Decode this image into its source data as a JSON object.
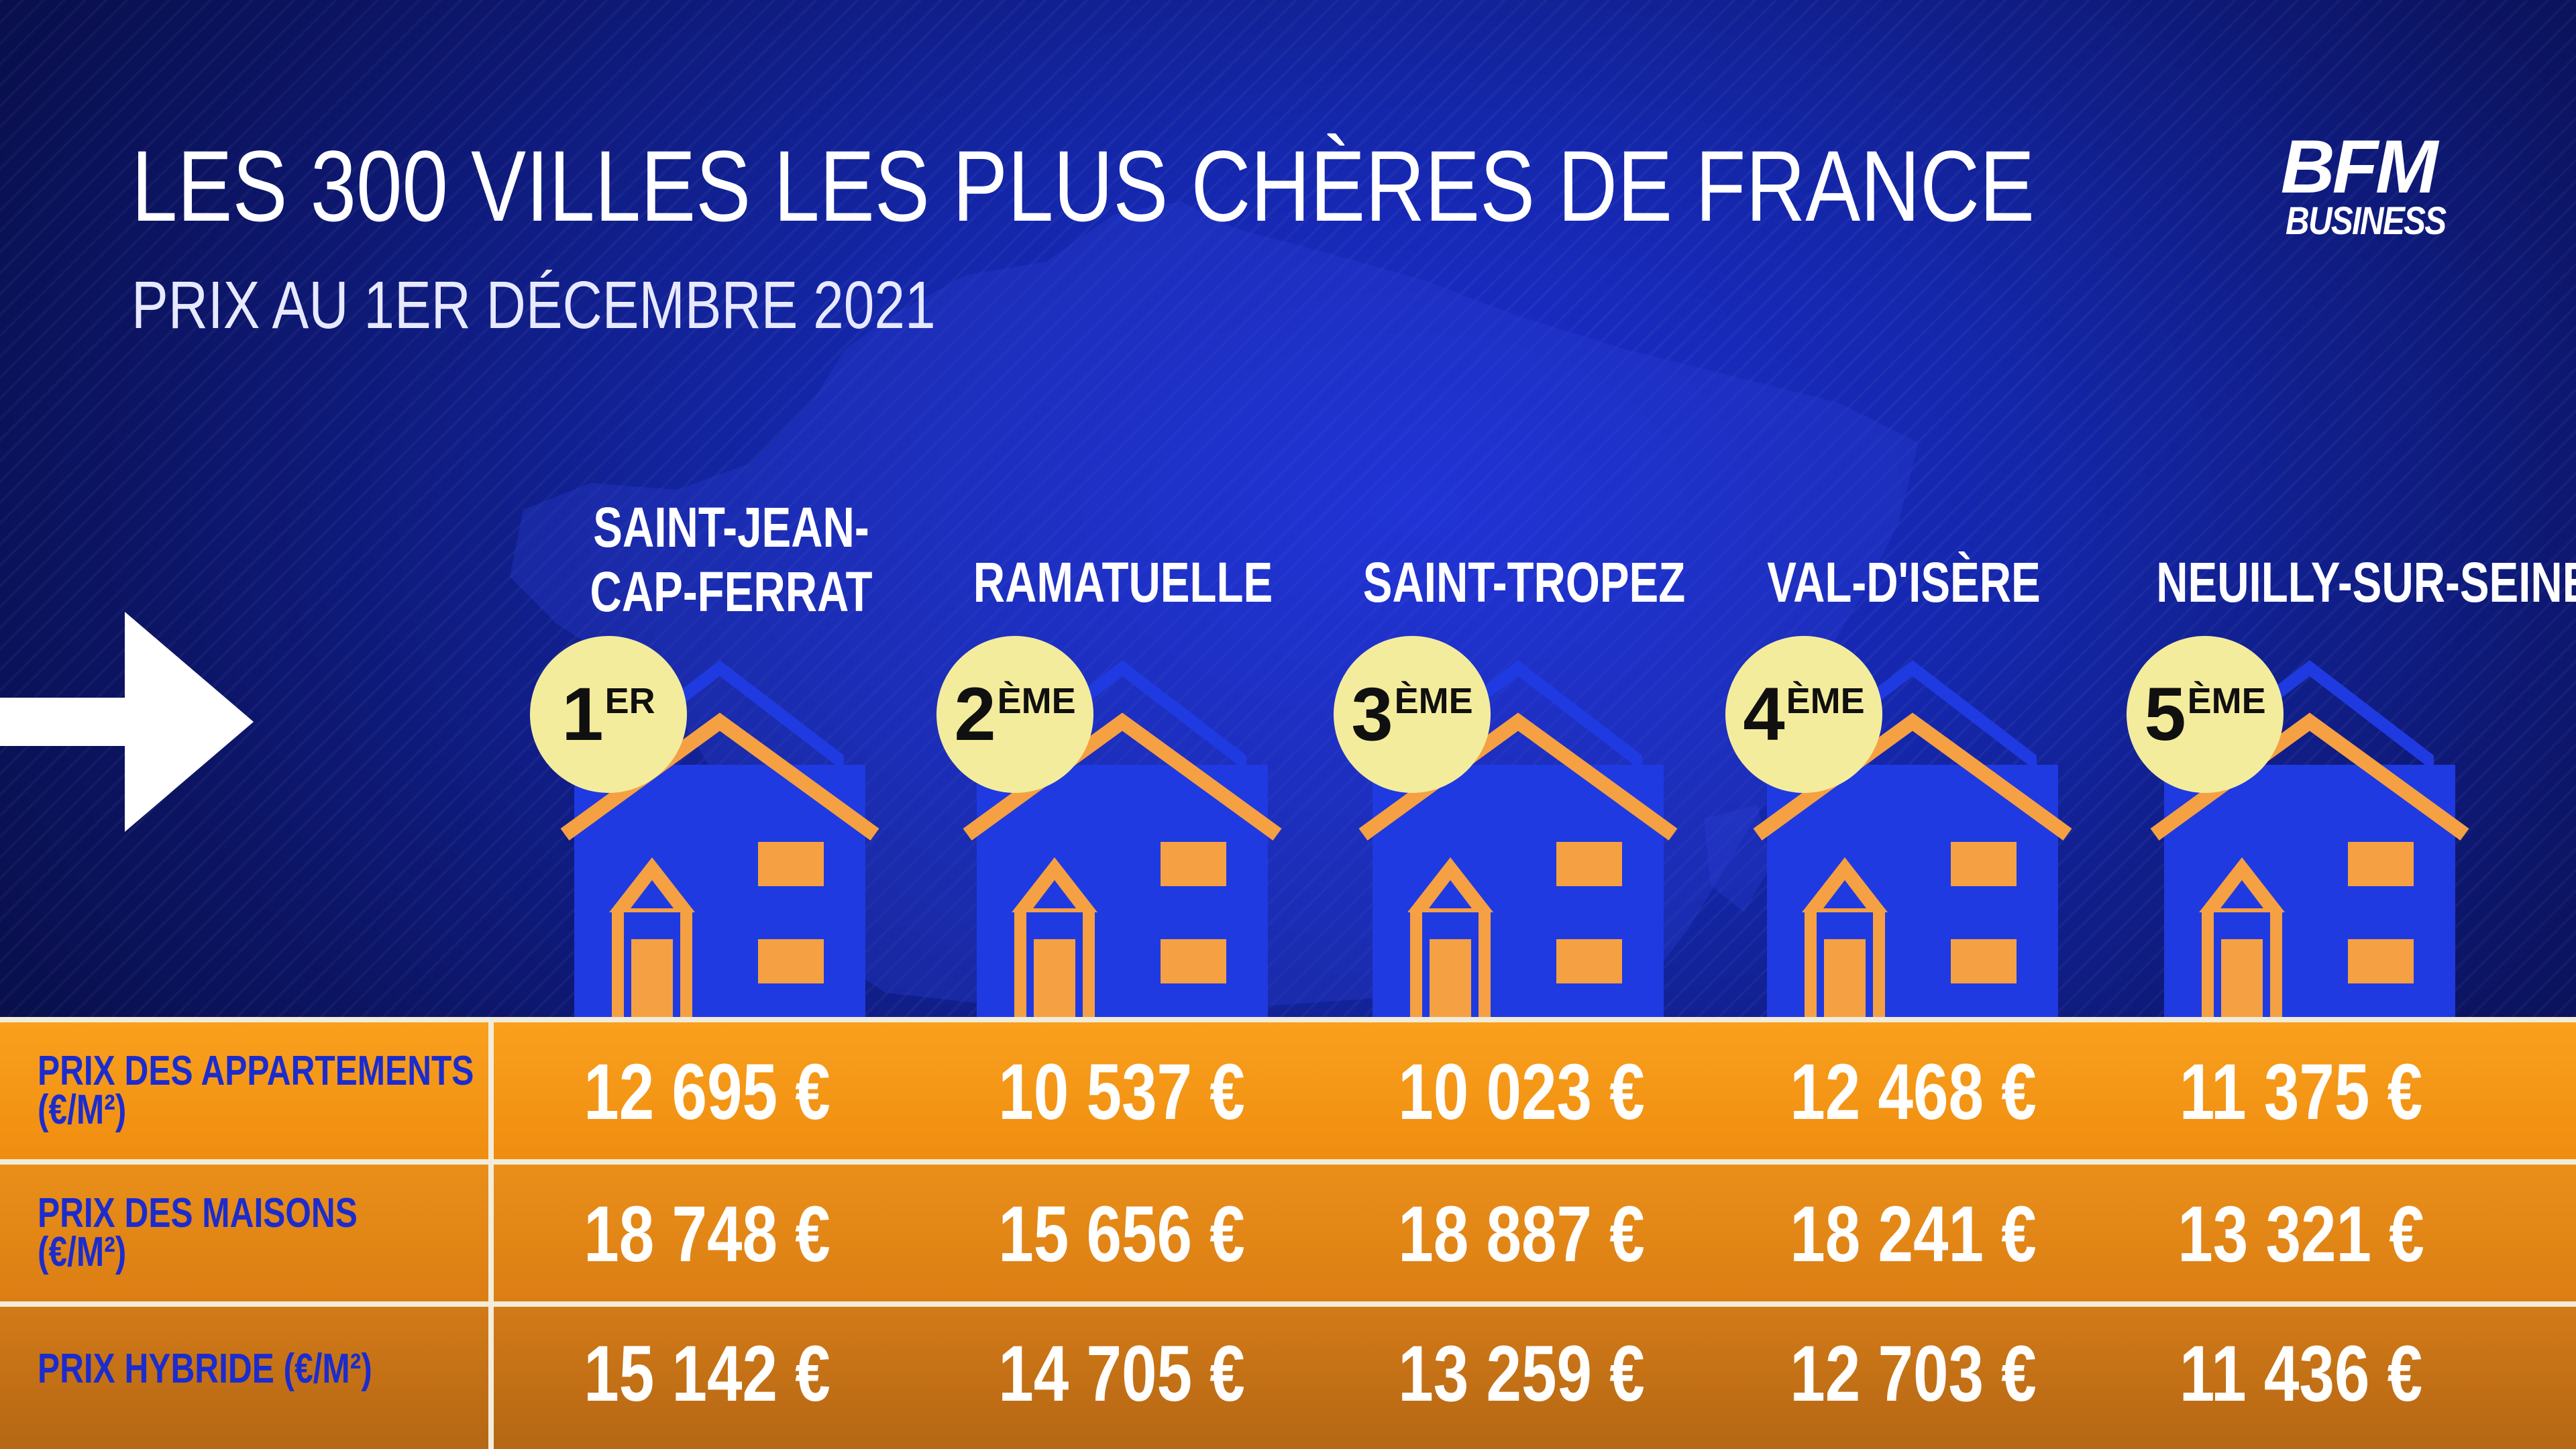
{
  "title": "LES 300 VILLES LES PLUS CHÈRES DE FRANCE",
  "subtitle": "PRIX AU 1ER DÉCEMBRE 2021",
  "logo": {
    "main": "BFM",
    "sub": "BUSINESS"
  },
  "colors": {
    "background": "#1426a8",
    "orange": "#f39a1a",
    "house_blue": "#1f3ae0",
    "badge": "#f4ec9d",
    "label_blue": "#1c2ccc"
  },
  "icons": {
    "arrow": "right-arrow-icon",
    "house": "house-icon"
  },
  "cities": [
    {
      "name_lines": [
        "SAINT-JEAN-",
        "CAP-FERRAT"
      ],
      "rank_num": "1",
      "rank_suffix": "ER"
    },
    {
      "name_lines": [
        "RAMATUELLE"
      ],
      "rank_num": "2",
      "rank_suffix": "ÈME"
    },
    {
      "name_lines": [
        "SAINT-TROPEZ"
      ],
      "rank_num": "3",
      "rank_suffix": "ÈME"
    },
    {
      "name_lines": [
        "VAL-D'ISÈRE"
      ],
      "rank_num": "4",
      "rank_suffix": "ÈME"
    },
    {
      "name_lines": [
        "NEUILLY-SUR-SEINE"
      ],
      "rank_num": "5",
      "rank_suffix": "ÈME"
    }
  ],
  "rows": [
    {
      "label_lines": [
        "PRIX DES APPARTEMENTS",
        "(€/M²)"
      ],
      "values": [
        "12 695 €",
        "10 537 €",
        "10 023 €",
        "12 468 €",
        "11 375 €"
      ]
    },
    {
      "label_lines": [
        "PRIX DES MAISONS",
        "(€/M²)"
      ],
      "values": [
        "18 748 €",
        "15 656 €",
        "18 887 €",
        "18 241 €",
        "13 321 €"
      ]
    },
    {
      "label_lines": [
        "PRIX HYBRIDE  (€/M²)"
      ],
      "values": [
        "15 142 €",
        "14 705 €",
        "13 259 €",
        "12 703 €",
        "11 436 €"
      ]
    }
  ]
}
